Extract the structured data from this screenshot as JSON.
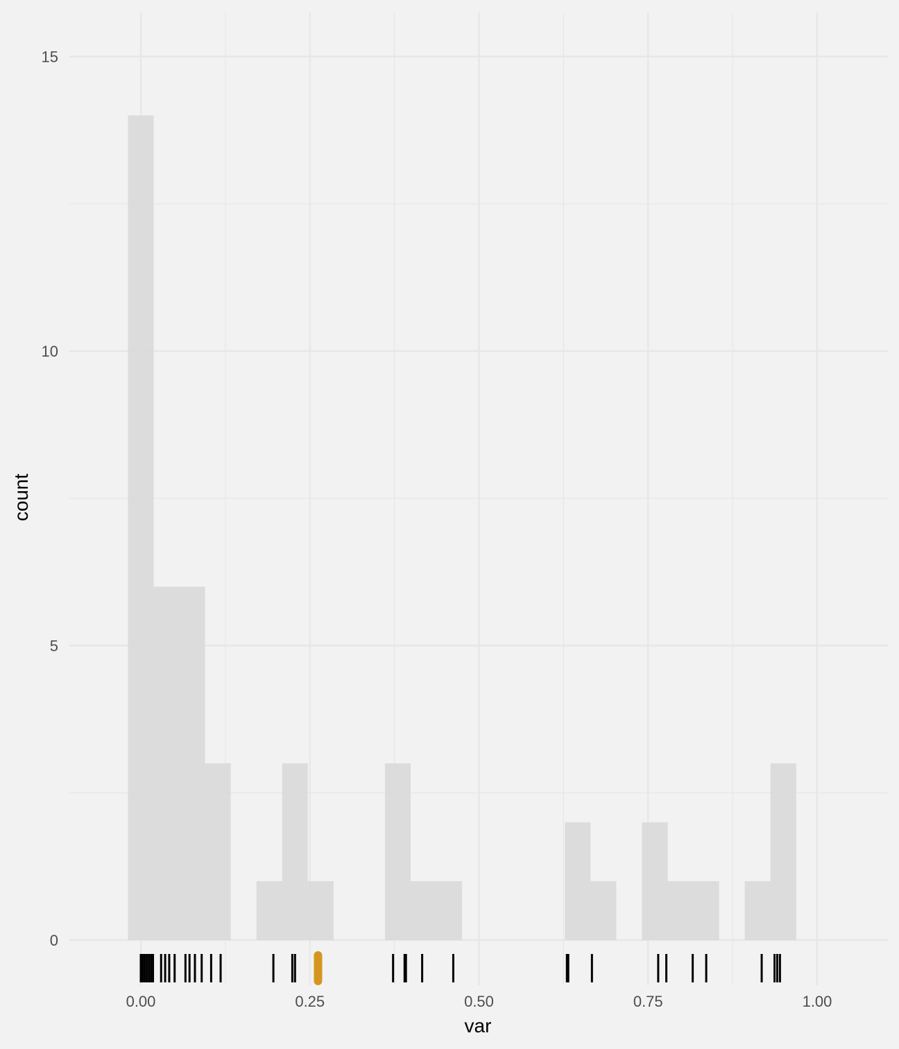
{
  "chart_data": {
    "type": "bar",
    "xlabel": "var",
    "ylabel": "count",
    "xlim": [
      -0.1,
      1.1
    ],
    "ylim": [
      0,
      15
    ],
    "x_ticks": [
      0.0,
      0.25,
      0.5,
      0.75,
      1.0
    ],
    "x_tick_labels": [
      "0.00",
      "0.25",
      "0.50",
      "0.75",
      "1.00"
    ],
    "y_ticks": [
      0,
      5,
      10,
      15
    ],
    "y_tick_labels": [
      "0",
      "5",
      "10",
      "15"
    ],
    "grid": true,
    "bin_width": 0.038,
    "bins": [
      {
        "x0": -0.019,
        "x1": 0.019,
        "count": 14
      },
      {
        "x0": 0.019,
        "x1": 0.057,
        "count": 6
      },
      {
        "x0": 0.057,
        "x1": 0.095,
        "count": 6
      },
      {
        "x0": 0.095,
        "x1": 0.133,
        "count": 3
      },
      {
        "x0": 0.133,
        "x1": 0.171,
        "count": 0
      },
      {
        "x0": 0.171,
        "x1": 0.209,
        "count": 1
      },
      {
        "x0": 0.209,
        "x1": 0.247,
        "count": 3
      },
      {
        "x0": 0.247,
        "x1": 0.285,
        "count": 1
      },
      {
        "x0": 0.285,
        "x1": 0.323,
        "count": 0
      },
      {
        "x0": 0.323,
        "x1": 0.361,
        "count": 0
      },
      {
        "x0": 0.361,
        "x1": 0.399,
        "count": 3
      },
      {
        "x0": 0.399,
        "x1": 0.437,
        "count": 1
      },
      {
        "x0": 0.437,
        "x1": 0.475,
        "count": 1
      },
      {
        "x0": 0.475,
        "x1": 0.513,
        "count": 0
      },
      {
        "x0": 0.513,
        "x1": 0.551,
        "count": 0
      },
      {
        "x0": 0.551,
        "x1": 0.589,
        "count": 0
      },
      {
        "x0": 0.589,
        "x1": 0.627,
        "count": 0
      },
      {
        "x0": 0.627,
        "x1": 0.665,
        "count": 2
      },
      {
        "x0": 0.665,
        "x1": 0.703,
        "count": 1
      },
      {
        "x0": 0.703,
        "x1": 0.741,
        "count": 0
      },
      {
        "x0": 0.741,
        "x1": 0.779,
        "count": 2
      },
      {
        "x0": 0.779,
        "x1": 0.817,
        "count": 1
      },
      {
        "x0": 0.817,
        "x1": 0.855,
        "count": 1
      },
      {
        "x0": 0.855,
        "x1": 0.893,
        "count": 0
      },
      {
        "x0": 0.893,
        "x1": 0.931,
        "count": 1
      },
      {
        "x0": 0.931,
        "x1": 0.969,
        "count": 3
      }
    ],
    "rug_values": [
      0.0,
      0.003,
      0.006,
      0.009,
      0.012,
      0.015,
      0.018,
      0.03,
      0.036,
      0.042,
      0.05,
      0.066,
      0.072,
      0.08,
      0.09,
      0.104,
      0.118,
      0.196,
      0.224,
      0.228,
      0.392,
      0.373,
      0.39,
      0.416,
      0.462,
      0.63,
      0.632,
      0.667,
      0.765,
      0.777,
      0.816,
      0.836,
      0.918,
      0.937,
      0.941,
      0.945
    ],
    "highlight_value": 0.262,
    "colors": {
      "background": "#f2f2f2",
      "bar_fill": "#d9d9d9",
      "grid": "#e6e6e6",
      "rug": "#000000",
      "highlight": "#d4961f"
    }
  }
}
